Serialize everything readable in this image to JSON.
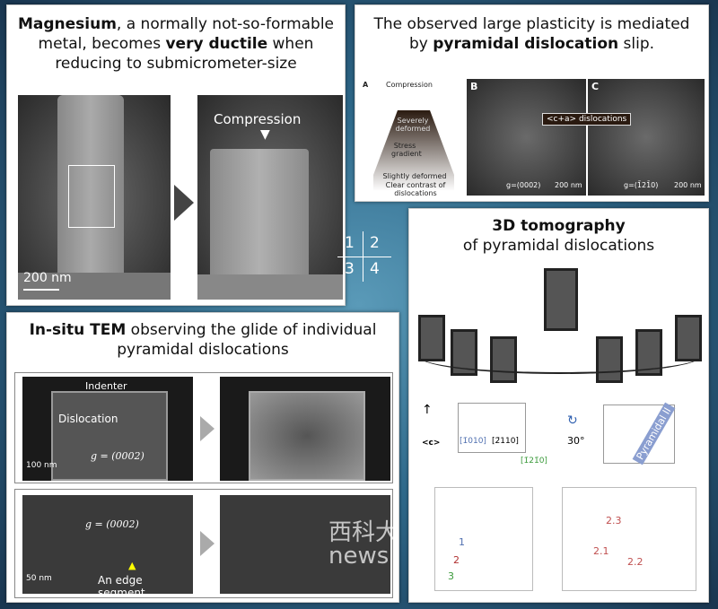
{
  "grid_labels": [
    "1",
    "2",
    "3",
    "4"
  ],
  "panel1": {
    "title_pre": "Magnesium",
    "title_mid1": ", a normally not-so-formable metal, becomes ",
    "title_bold2": "very ductile",
    "title_post": " when reducing to submicrometer-size",
    "compression": "Compression",
    "scale": "200 nm"
  },
  "panel2": {
    "title_pre": "The observed large plasticity is mediated by ",
    "title_bold": "pyramidal dislocation",
    "title_post": " slip.",
    "a": {
      "label": "A",
      "compression": "Compression",
      "severe": "Severely deformed",
      "stress": "Stress gradient",
      "slight": "Slightly deformed",
      "clear": "Clear contrast of dislocations"
    },
    "b": {
      "label": "B",
      "g": "g=(0002)",
      "scale": "200 nm"
    },
    "c": {
      "label": "C",
      "g": "g=(1̄21̄0)",
      "scale": "200 nm"
    },
    "callout": "<c+a> dislocations"
  },
  "panel3": {
    "title_bold": "In-situ TEM",
    "title_post": " observing the glide of individual pyramidal dislocations",
    "top": {
      "indenter": "Indenter",
      "dislocation": "Dislocation",
      "g": "g = (0002)",
      "scale": "100 nm"
    },
    "bottom": {
      "g": "g = (0002)",
      "edge": "An edge segment",
      "scale": "50 nm"
    }
  },
  "panel4": {
    "title_bold": "3D tomography",
    "title_post": "of pyramidal dislocations",
    "c_axis": "<c>",
    "dir1": "[1̄010]",
    "dir2": "[2̄110]",
    "dir3": "[1̄21̄0]",
    "rot": "30°",
    "plane": "Pyramidal II",
    "left_labels": [
      "1",
      "2",
      "3"
    ],
    "right_labels": [
      "2.3",
      "2.1",
      "2.2"
    ]
  },
  "watermark": {
    "cn": "西科大",
    "en": "news"
  }
}
